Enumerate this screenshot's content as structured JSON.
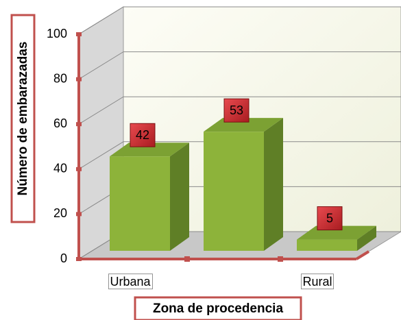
{
  "chart_data": {
    "type": "bar3d",
    "categories": [
      "Urbana",
      null,
      "Rural"
    ],
    "values": [
      42,
      53,
      5
    ],
    "color": "#8db33a",
    "label_color": "#c0282d",
    "xlabel": "Zona de procedencia",
    "ylabel": "Número de embarazadas",
    "ylim": [
      0,
      100
    ],
    "yticks": [
      0,
      20,
      40,
      60,
      80,
      100
    ],
    "grid": true
  }
}
